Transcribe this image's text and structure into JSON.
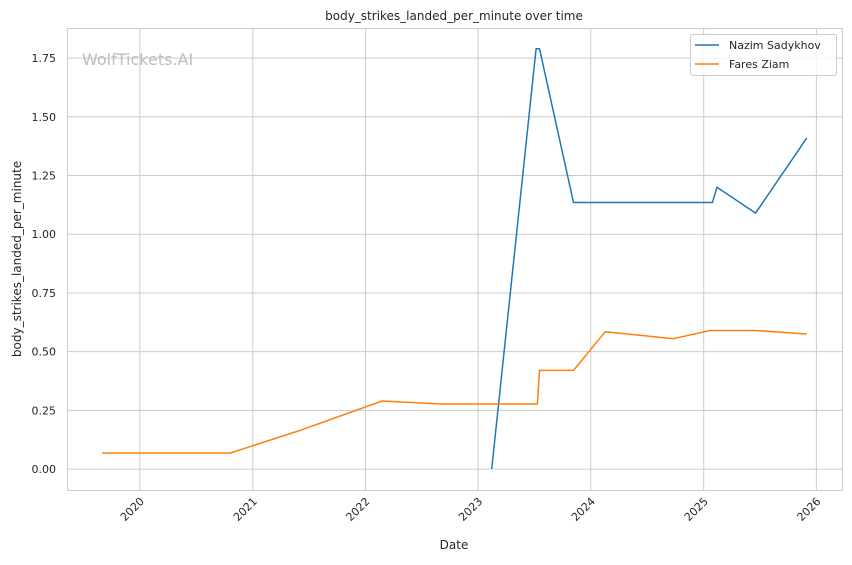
{
  "chart_data": {
    "type": "line",
    "title": "body_strikes_landed_per_minute over time",
    "xlabel": "Date",
    "ylabel": "body_strikes_landed_per_minute",
    "watermark": "WolfTickets.AI",
    "xlim": [
      "2019-05-10",
      "2026-03-25"
    ],
    "ylim": [
      -0.089,
      1.878
    ],
    "x_ticks": [
      "2020",
      "2021",
      "2022",
      "2023",
      "2024",
      "2025",
      "2026"
    ],
    "y_ticks": [
      "0.00",
      "0.25",
      "0.50",
      "0.75",
      "1.00",
      "1.25",
      "1.50",
      "1.75"
    ],
    "grid": true,
    "legend_position": "top-right",
    "series": [
      {
        "name": "Nazim Sadykhov",
        "color": "#1f77b4",
        "x": [
          "2023-02-14",
          "2023-07-08",
          "2023-07-19",
          "2023-11-06",
          "2025-01-29",
          "2025-02-13",
          "2025-06-18",
          "2025-12-01"
        ],
        "y": [
          0.0,
          1.79,
          1.79,
          1.135,
          1.135,
          1.2,
          1.09,
          1.41
        ]
      },
      {
        "name": "Fares Ziam",
        "color": "#ff7f0e",
        "x": [
          "2019-09-01",
          "2020-10-19",
          "2021-06-06",
          "2022-02-24",
          "2022-09-01",
          "2023-07-12",
          "2023-07-19",
          "2023-11-06",
          "2024-02-17",
          "2024-09-24",
          "2025-01-22",
          "2025-06-18",
          "2025-12-01"
        ],
        "y": [
          0.068,
          0.068,
          0.166,
          0.29,
          0.277,
          0.277,
          0.42,
          0.42,
          0.585,
          0.555,
          0.59,
          0.59,
          0.575
        ]
      }
    ]
  }
}
